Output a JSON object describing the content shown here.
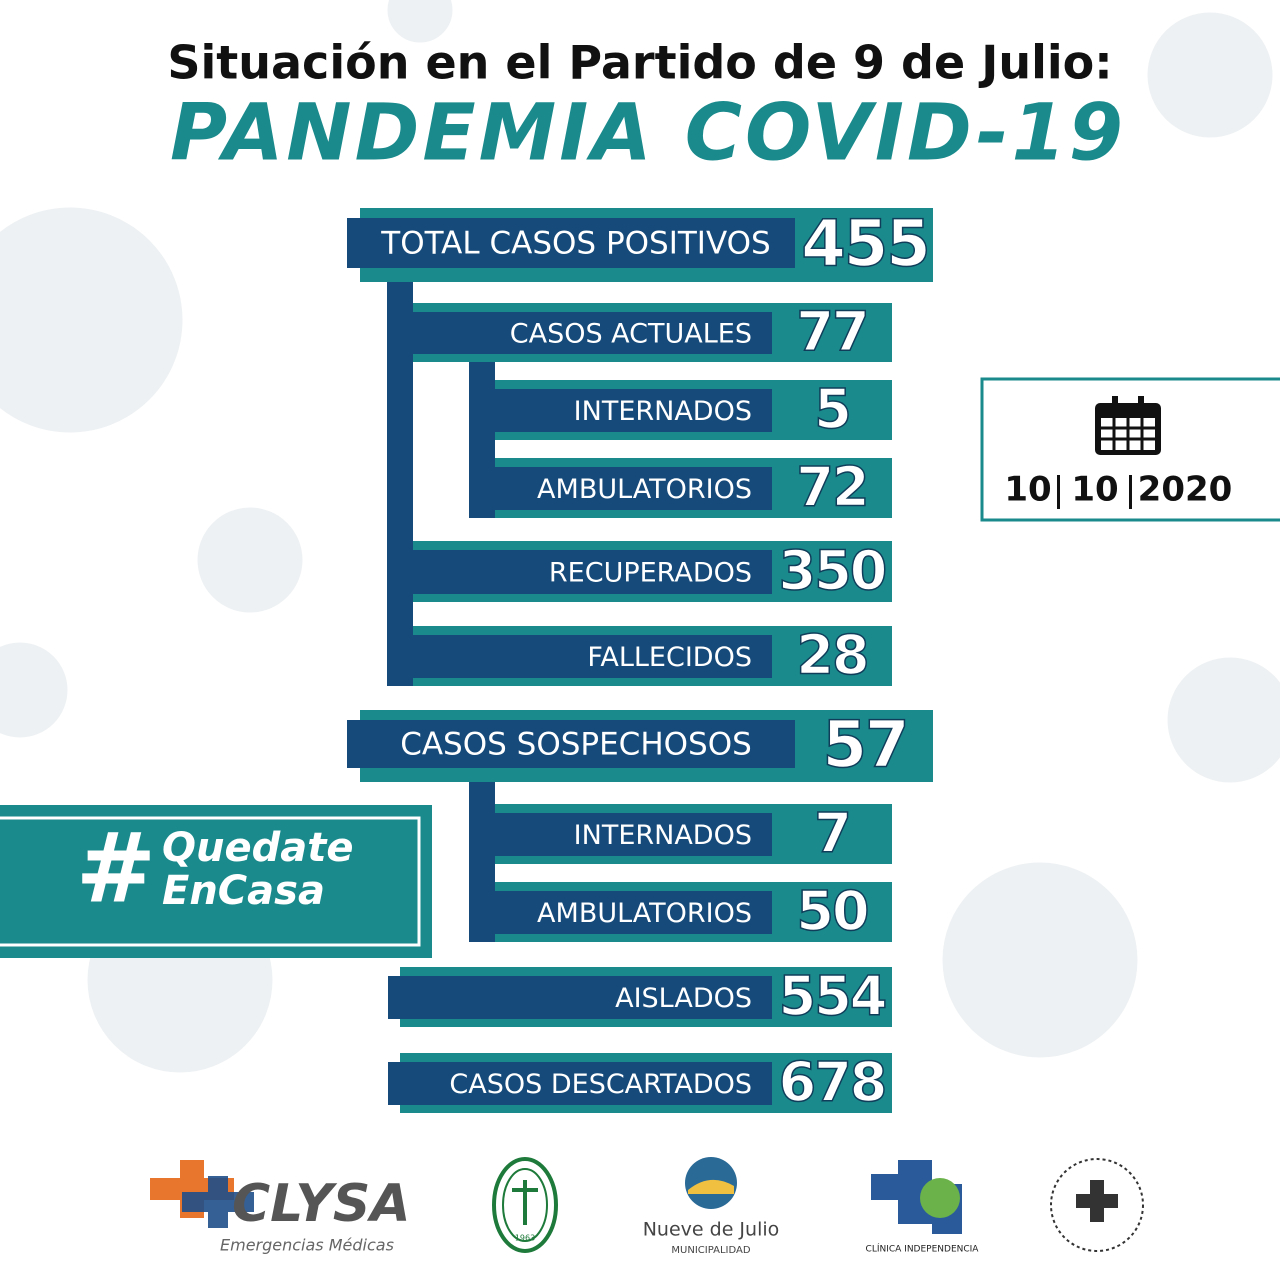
{
  "header": {
    "title": "Situación en el Partido de 9 de Julio:",
    "subtitle": "PANDEMIA COVID-19"
  },
  "stats": [
    {
      "label": "TOTAL CASOS POSITIVOS",
      "value": 455
    },
    {
      "label": "CASOS ACTUALES",
      "value": 77
    },
    {
      "label": "INTERNADOS",
      "value": 5
    },
    {
      "label": "AMBULATORIOS",
      "value": 72
    },
    {
      "label": "RECUPERADOS",
      "value": 350
    },
    {
      "label": "FALLECIDOS",
      "value": 28
    },
    {
      "label": "CASOS SOSPECHOSOS",
      "value": 57
    },
    {
      "label": "INTERNADOS",
      "value": 7
    },
    {
      "label": "AMBULATORIOS",
      "value": 50
    },
    {
      "label": "AISLADOS",
      "value": 554
    },
    {
      "label": "CASOS DESCARTADOS",
      "value": 678
    }
  ],
  "date": {
    "day": "10",
    "month": "10",
    "year": "2020"
  },
  "hashtag": {
    "symbol": "#",
    "lines": [
      "Quedate",
      "EnCasa"
    ]
  },
  "logos": {
    "clysa": {
      "name": "CLYSA",
      "tagline": "Emergencias Médicas"
    },
    "circulo": {
      "year": "1963"
    },
    "municipio": {
      "name": "Nueve de Julio",
      "tagline": "MUNICIPALIDAD"
    },
    "clinica": {
      "name": "CLÍNICA INDEPENDENCIA"
    }
  }
}
